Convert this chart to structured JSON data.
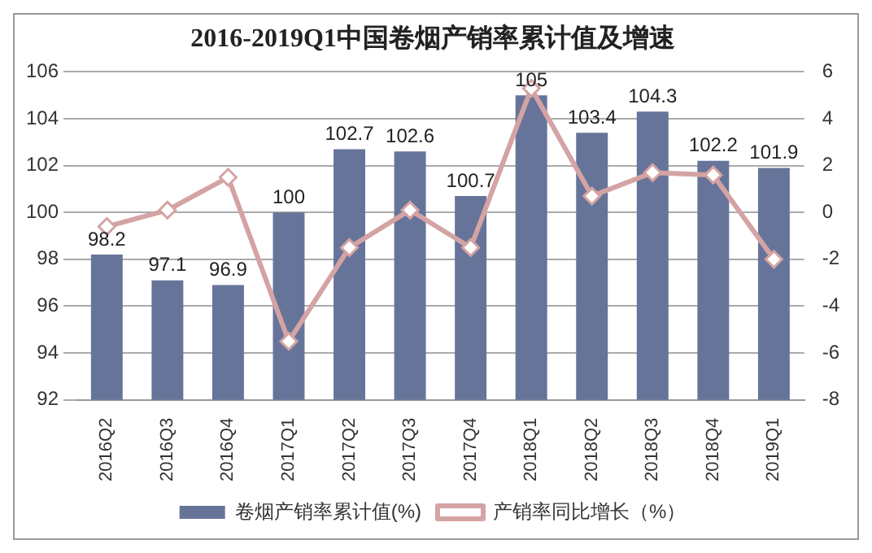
{
  "chart_data": {
    "type": "bar",
    "title": "2016-2019Q1中国卷烟产销率累计值及增速",
    "categories": [
      "2016Q2",
      "2016Q3",
      "2016Q4",
      "2017Q1",
      "2017Q2",
      "2017Q3",
      "2017Q4",
      "2018Q1",
      "2018Q2",
      "2018Q3",
      "2018Q4",
      "2019Q1"
    ],
    "series": [
      {
        "name": "卷烟产销率累计值(%)",
        "color": "#67749a",
        "values": [
          98.2,
          97.1,
          96.9,
          100,
          102.7,
          102.6,
          100.7,
          105,
          103.4,
          104.3,
          102.2,
          101.9
        ],
        "data_labels": true
      },
      {
        "name": "产销率同比增长（%）",
        "type": "line",
        "axis": "y2",
        "color": "#d4a3a3",
        "marker": "diamond",
        "values": [
          -0.6,
          0.1,
          1.5,
          -5.5,
          -1.5,
          0.1,
          -1.5,
          5.3,
          0.7,
          1.7,
          1.6,
          -2.0
        ]
      }
    ],
    "ylim": [
      92,
      106
    ],
    "yticks": [
      92,
      94,
      96,
      98,
      100,
      102,
      104,
      106
    ],
    "y2lim": [
      -8,
      6
    ],
    "y2ticks": [
      -8,
      -6,
      -4,
      -2,
      0,
      2,
      4,
      6
    ],
    "grid": "y",
    "legend": "bottom"
  }
}
